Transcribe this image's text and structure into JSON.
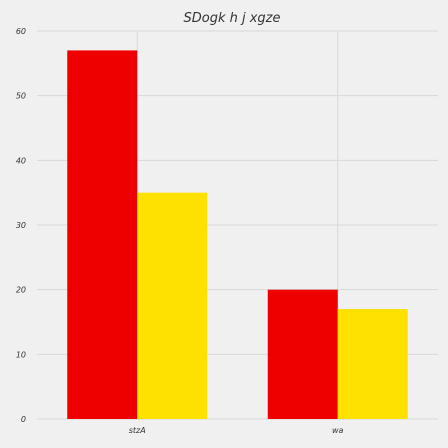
{
  "chart_data": {
    "type": "bar",
    "title": "SDogk h j xgze",
    "xlabel": "",
    "ylabel": "",
    "categories": [
      "stzA",
      "wa"
    ],
    "series": [
      {
        "values": [
          57,
          20
        ],
        "color": "#ee0000"
      },
      {
        "values": [
          35,
          17
        ],
        "color": "#ffe100"
      }
    ],
    "ylim": [
      0,
      60
    ],
    "yticks": [
      0,
      10,
      20,
      30,
      40,
      50,
      60
    ],
    "grid": true,
    "legend": "none"
  }
}
